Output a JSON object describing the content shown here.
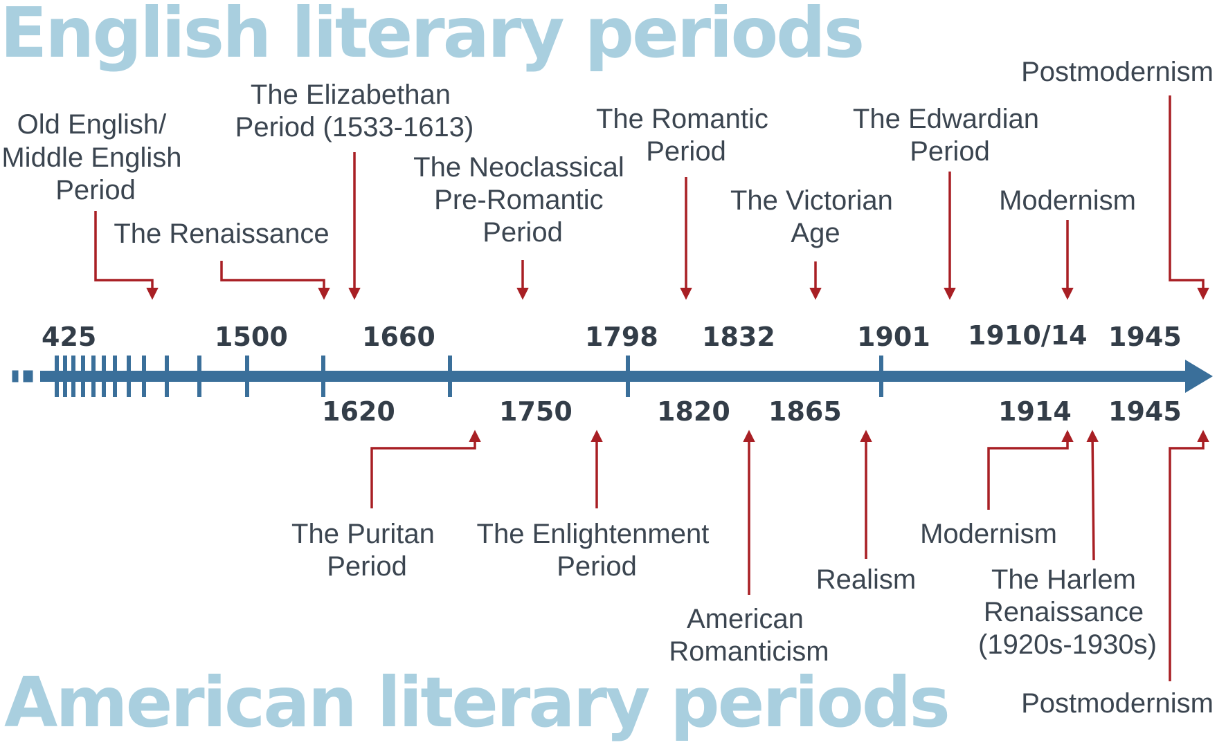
{
  "titles": {
    "english": "English literary periods",
    "american": "American literary periods"
  },
  "colors": {
    "title": "#a9cfdf",
    "axis": "#3a6f9a",
    "arrow": "#a81f24",
    "text": "#3b4550"
  },
  "english": {
    "years": [
      "425",
      "1500",
      "1660",
      "1798",
      "1832",
      "1901",
      "1910/14",
      "1945"
    ],
    "periods": [
      [
        "Old English/",
        "Middle English",
        "Period"
      ],
      [
        "The Renaissance"
      ],
      [
        "The Elizabethan",
        "Period (1533-1613)"
      ],
      [
        "The Neoclassical",
        "Pre-Romantic",
        "Period"
      ],
      [
        "The Romantic",
        "Period"
      ],
      [
        "The Victorian",
        "Age"
      ],
      [
        "The Edwardian",
        "Period"
      ],
      [
        "Modernism"
      ],
      [
        "Postmodernism"
      ]
    ]
  },
  "american": {
    "years": [
      "1620",
      "1750",
      "1820",
      "1865",
      "1914",
      "1945"
    ],
    "periods": [
      [
        "The Puritan",
        "Period"
      ],
      [
        "The Enlightenment",
        "Period"
      ],
      [
        "American",
        "Romanticism"
      ],
      [
        "Realism"
      ],
      [
        "Modernism"
      ],
      [
        "The Harlem",
        "Renaissance",
        "(1920s-1930s)"
      ],
      [
        "Postmodernism"
      ]
    ]
  }
}
